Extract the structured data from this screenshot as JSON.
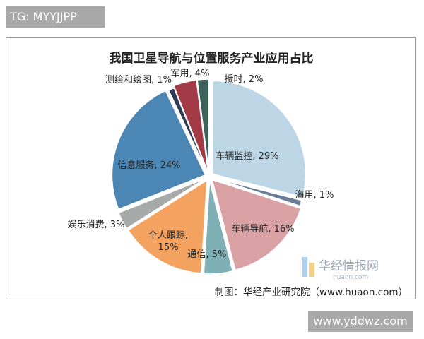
{
  "overlay": {
    "top_tag": "TG: MYYJJPP",
    "bottom_tag": "www.yddwz.com"
  },
  "watermark": {
    "name": "华经情报网",
    "url": "huaon.com"
  },
  "chart_data": {
    "type": "pie",
    "title": "我国卫星导航与位置服务产业应用占比",
    "source": "制图：华经产业研究院（www.huaon.com）",
    "slices": [
      {
        "label": "车辆监控",
        "value": 29,
        "display": "车辆监控, 29%",
        "color": "#bcd6e6"
      },
      {
        "label": "海用",
        "value": 1,
        "display": "海用, 1%",
        "color": "#6a7c98"
      },
      {
        "label": "车辆导航",
        "value": 16,
        "display": "车辆导航, 16%",
        "color": "#d9a1a4"
      },
      {
        "label": "通信",
        "value": 5,
        "display": "通信, 5%",
        "color": "#7fb0b5"
      },
      {
        "label": "个人跟踪",
        "value": 15,
        "display": "个人跟踪,\n15%",
        "color": "#f4a25f"
      },
      {
        "label": "娱乐消费",
        "value": 3,
        "display": "娱乐消费, 3%",
        "color": "#a6aaa8"
      },
      {
        "label": "信息服务",
        "value": 24,
        "display": "信息服务, 24%",
        "color": "#4b86b4"
      },
      {
        "label": "测绘和绘图",
        "value": 1,
        "display": "测绘和绘图, 1%",
        "color": "#2d3a52"
      },
      {
        "label": "军用",
        "value": 4,
        "display": "军用, 4%",
        "color": "#a23b45"
      },
      {
        "label": "授时",
        "value": 2,
        "display": "授时, 2%",
        "color": "#3b615a"
      }
    ]
  }
}
